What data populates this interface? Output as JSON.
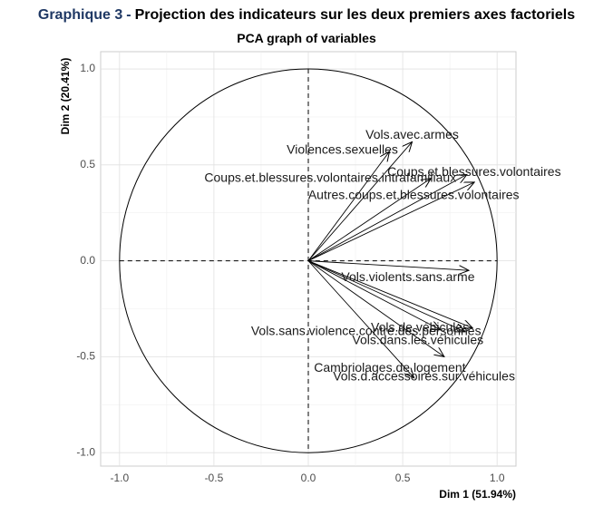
{
  "header": {
    "label": "Graphique 3",
    "separator": "-",
    "title": "Projection des indicateurs sur les deux premiers axes factoriels"
  },
  "chart_data": {
    "type": "scatter",
    "title": "PCA graph of variables",
    "xlabel": "Dim 1 (51.94%)",
    "ylabel": "Dim 2 (20.41%)",
    "xlim": [
      -1.1,
      1.1
    ],
    "ylim": [
      -1.07,
      1.09
    ],
    "x_ticks": [
      -1.0,
      -0.5,
      0.0,
      0.5,
      1.0
    ],
    "y_ticks": [
      -1.0,
      -0.5,
      0.0,
      0.5,
      1.0
    ],
    "x_tick_labels": [
      "-1.0",
      "-0.5",
      "0.0",
      "0.5",
      "1.0"
    ],
    "y_tick_labels": [
      "-1.0",
      "-0.5",
      "0.0",
      "0.5",
      "1.0"
    ],
    "grid": true,
    "correlation_circle_radius": 1.0,
    "variables": [
      {
        "name": "Vols.avec.armes",
        "x": 0.55,
        "y": 0.62
      },
      {
        "name": "Violences.sexuelles",
        "x": 0.43,
        "y": 0.57
      },
      {
        "name": "Coups.et.blessures.volontaires.intrafamiliaux",
        "x": 0.65,
        "y": 0.43
      },
      {
        "name": "Coups.et.blessures.volontaires",
        "x": 0.84,
        "y": 0.45
      },
      {
        "name": "Autres.coups.et.blessures.volontaires",
        "x": 0.88,
        "y": 0.41
      },
      {
        "name": "Vols.violents.sans.arme",
        "x": 0.85,
        "y": -0.05
      },
      {
        "name": "Vols.de.véhicules",
        "x": 0.87,
        "y": -0.35
      },
      {
        "name": "Vols.sans.violence.contre.des.personnes",
        "x": 0.7,
        "y": -0.36
      },
      {
        "name": "Vols.dans.les.véhicules",
        "x": 0.83,
        "y": -0.37
      },
      {
        "name": "Cambriolages.de.logement",
        "x": 0.72,
        "y": -0.5
      },
      {
        "name": "Vols.d.accessoires.sur.véhicules",
        "x": 0.56,
        "y": -0.61
      }
    ]
  }
}
